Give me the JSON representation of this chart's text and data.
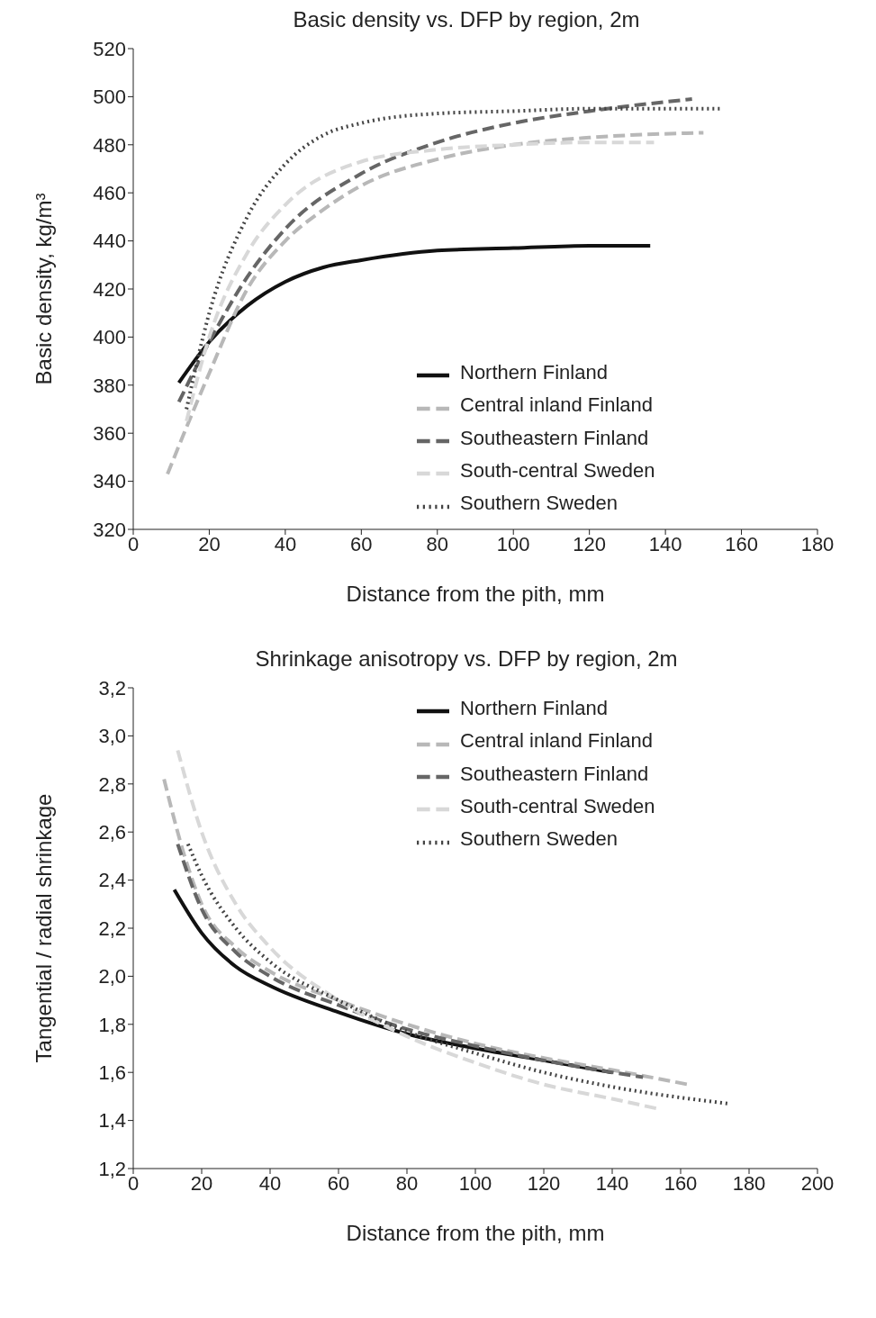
{
  "chart_data": [
    {
      "type": "line",
      "title": "Basic density vs. DFP by region, 2m",
      "xlabel": "Distance from the pith, mm",
      "ylabel": "Basic density, kg/m³",
      "xlim": [
        0,
        180
      ],
      "xticks": [
        0,
        20,
        40,
        60,
        80,
        100,
        120,
        140,
        160,
        180
      ],
      "ylim": [
        320,
        520
      ],
      "yticks": [
        320,
        340,
        360,
        380,
        400,
        420,
        440,
        460,
        480,
        500,
        520
      ],
      "grid": false,
      "legend": "bottom right",
      "marker": "none",
      "series": [
        {
          "name": "Northern Finland",
          "color": "#111111",
          "line_style": "solid",
          "x": [
            12,
            20,
            30,
            40,
            50,
            60,
            80,
            100,
            120,
            136
          ],
          "values": [
            381,
            398,
            413,
            423,
            429,
            432,
            436,
            437,
            438,
            438
          ]
        },
        {
          "name": "Central inland Finland",
          "color": "#b8b8b8",
          "line_style": "dashed",
          "x": [
            9,
            20,
            30,
            40,
            50,
            60,
            80,
            100,
            120,
            150
          ],
          "values": [
            343,
            385,
            420,
            440,
            453,
            463,
            474,
            480,
            483,
            485
          ]
        },
        {
          "name": "Southeastern Finland",
          "color": "#666666",
          "line_style": "dashed",
          "x": [
            12,
            20,
            30,
            40,
            60,
            80,
            100,
            120,
            147
          ],
          "values": [
            373,
            398,
            425,
            445,
            468,
            481,
            489,
            494,
            499
          ]
        },
        {
          "name": "South-central Sweden",
          "color": "#d8d8d8",
          "line_style": "dashed",
          "x": [
            14,
            20,
            30,
            40,
            60,
            80,
            100,
            120,
            137
          ],
          "values": [
            365,
            400,
            435,
            455,
            473,
            478,
            480,
            481,
            481
          ]
        },
        {
          "name": "Southern Sweden",
          "color": "#444444",
          "line_style": "dotted",
          "x": [
            14,
            20,
            30,
            40,
            50,
            60,
            80,
            100,
            120,
            155
          ],
          "values": [
            370,
            410,
            450,
            472,
            484,
            489,
            493,
            494,
            495,
            495
          ]
        }
      ]
    },
    {
      "type": "line",
      "title": "Shrinkage anisotropy vs. DFP by region, 2m",
      "xlabel": "Distance from the pith, mm",
      "ylabel": "Tangential / radial shrinkage",
      "xlim": [
        0,
        200
      ],
      "xticks": [
        0,
        20,
        40,
        60,
        80,
        100,
        120,
        140,
        160,
        180,
        200
      ],
      "ylim": [
        1.2,
        3.2
      ],
      "yticks": [
        {
          "value": 1.2,
          "label": "1,2"
        },
        {
          "value": 1.4,
          "label": "1,4"
        },
        {
          "value": 1.6,
          "label": "1,6"
        },
        {
          "value": 1.8,
          "label": "1,8"
        },
        {
          "value": 2.0,
          "label": "2,0"
        },
        {
          "value": 2.2,
          "label": "2,2"
        },
        {
          "value": 2.4,
          "label": "2,4"
        },
        {
          "value": 2.6,
          "label": "2,6"
        },
        {
          "value": 2.8,
          "label": "2,8"
        },
        {
          "value": 3.0,
          "label": "3,0"
        },
        {
          "value": 3.2,
          "label": "3,2"
        }
      ],
      "grid": false,
      "legend": "top right",
      "marker": "none",
      "series": [
        {
          "name": "Northern Finland",
          "color": "#111111",
          "line_style": "solid",
          "x": [
            12,
            20,
            30,
            40,
            60,
            80,
            100,
            120,
            140
          ],
          "values": [
            2.36,
            2.18,
            2.04,
            1.96,
            1.85,
            1.76,
            1.7,
            1.65,
            1.6
          ]
        },
        {
          "name": "Central inland Finland",
          "color": "#b8b8b8",
          "line_style": "dashed",
          "x": [
            9,
            15,
            20,
            30,
            40,
            60,
            80,
            100,
            120,
            140,
            162
          ],
          "values": [
            2.82,
            2.5,
            2.3,
            2.12,
            2.02,
            1.9,
            1.8,
            1.72,
            1.66,
            1.61,
            1.55
          ]
        },
        {
          "name": "Southeastern Finland",
          "color": "#666666",
          "line_style": "dashed",
          "x": [
            13,
            20,
            30,
            40,
            60,
            80,
            100,
            120,
            149
          ],
          "values": [
            2.55,
            2.28,
            2.1,
            2.0,
            1.88,
            1.78,
            1.71,
            1.65,
            1.58
          ]
        },
        {
          "name": "South-central Sweden",
          "color": "#d8d8d8",
          "line_style": "dashed",
          "x": [
            13,
            20,
            30,
            40,
            60,
            80,
            100,
            120,
            140,
            153
          ],
          "values": [
            2.94,
            2.6,
            2.3,
            2.12,
            1.9,
            1.75,
            1.64,
            1.55,
            1.49,
            1.45
          ]
        },
        {
          "name": "Southern Sweden",
          "color": "#444444",
          "line_style": "dotted",
          "x": [
            16,
            20,
            30,
            40,
            60,
            80,
            100,
            120,
            140,
            174
          ],
          "values": [
            2.55,
            2.42,
            2.2,
            2.06,
            1.9,
            1.77,
            1.68,
            1.6,
            1.54,
            1.47
          ]
        }
      ]
    }
  ]
}
